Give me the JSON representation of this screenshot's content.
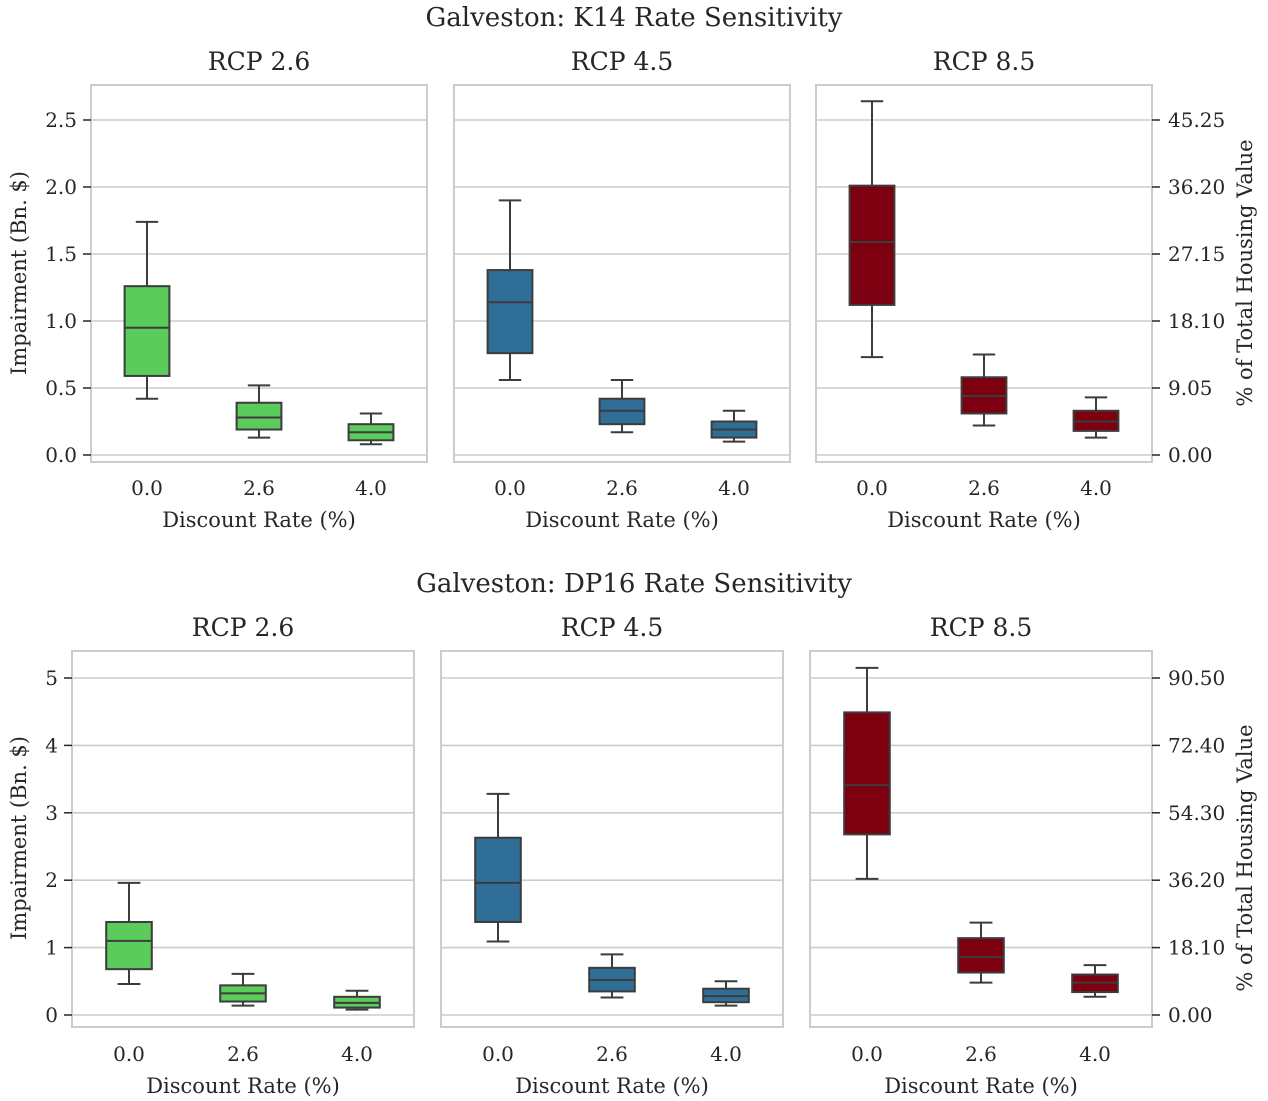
{
  "colors": {
    "RCP 2.6": "#5bcb5c",
    "RCP 4.5": "#2f6f97",
    "RCP 8.5": "#7d0011",
    "grid": "#cccccc",
    "frame": "#cccccc",
    "box_edge": "#3c3c3c"
  },
  "chart_data": [
    {
      "type": "box",
      "title": "Galveston: K14 Rate Sensitivity",
      "xlabel": "Discount Rate (%)",
      "ylabel": "Impairment (Bn. $)",
      "ylabel_right": "% of Total Housing Value",
      "ylim": [
        -0.05,
        2.75
      ],
      "yticks": [
        "0.0",
        "0.5",
        "1.0",
        "1.5",
        "2.0",
        "2.5"
      ],
      "yticks_right": [
        "0.00",
        "9.05",
        "18.10",
        "27.15",
        "36.20",
        "45.25"
      ],
      "categories": [
        "0.0",
        "2.6",
        "4.0"
      ],
      "grid": true,
      "panels": [
        {
          "title": "RCP 2.6",
          "boxes": [
            {
              "whislo": 0.42,
              "q1": 0.59,
              "med": 0.95,
              "q3": 1.26,
              "whishi": 1.74
            },
            {
              "whislo": 0.13,
              "q1": 0.19,
              "med": 0.28,
              "q3": 0.39,
              "whishi": 0.52
            },
            {
              "whislo": 0.08,
              "q1": 0.11,
              "med": 0.17,
              "q3": 0.23,
              "whishi": 0.31
            }
          ]
        },
        {
          "title": "RCP 4.5",
          "boxes": [
            {
              "whislo": 0.56,
              "q1": 0.76,
              "med": 1.14,
              "q3": 1.38,
              "whishi": 1.9
            },
            {
              "whislo": 0.17,
              "q1": 0.23,
              "med": 0.33,
              "q3": 0.42,
              "whishi": 0.56
            },
            {
              "whislo": 0.1,
              "q1": 0.13,
              "med": 0.19,
              "q3": 0.25,
              "whishi": 0.33
            }
          ]
        },
        {
          "title": "RCP 8.5",
          "boxes": [
            {
              "whislo": 0.73,
              "q1": 1.12,
              "med": 1.59,
              "q3": 2.01,
              "whishi": 2.64
            },
            {
              "whislo": 0.22,
              "q1": 0.31,
              "med": 0.44,
              "q3": 0.58,
              "whishi": 0.75
            },
            {
              "whislo": 0.13,
              "q1": 0.18,
              "med": 0.25,
              "q3": 0.33,
              "whishi": 0.43
            }
          ]
        }
      ]
    },
    {
      "type": "box",
      "title": "Galveston: DP16 Rate Sensitivity",
      "xlabel": "Discount Rate (%)",
      "ylabel": "Impairment (Bn. $)",
      "ylabel_right": "% of Total Housing Value",
      "ylim": [
        -0.17,
        5.4
      ],
      "yticks": [
        "0",
        "1",
        "2",
        "3",
        "4",
        "5"
      ],
      "yticks_right": [
        "0.00",
        "18.10",
        "36.20",
        "54.30",
        "72.40",
        "90.50"
      ],
      "categories": [
        "0.0",
        "2.6",
        "4.0"
      ],
      "grid": true,
      "panels": [
        {
          "title": "RCP 2.6",
          "boxes": [
            {
              "whislo": 0.46,
              "q1": 0.68,
              "med": 1.1,
              "q3": 1.38,
              "whishi": 1.96
            },
            {
              "whislo": 0.14,
              "q1": 0.2,
              "med": 0.32,
              "q3": 0.44,
              "whishi": 0.61
            },
            {
              "whislo": 0.08,
              "q1": 0.11,
              "med": 0.18,
              "q3": 0.27,
              "whishi": 0.36
            }
          ]
        },
        {
          "title": "RCP 4.5",
          "boxes": [
            {
              "whislo": 1.09,
              "q1": 1.38,
              "med": 1.96,
              "q3": 2.63,
              "whishi": 3.28
            },
            {
              "whislo": 0.26,
              "q1": 0.35,
              "med": 0.52,
              "q3": 0.7,
              "whishi": 0.9
            },
            {
              "whislo": 0.14,
              "q1": 0.19,
              "med": 0.28,
              "q3": 0.39,
              "whishi": 0.5
            }
          ]
        },
        {
          "title": "RCP 8.5",
          "boxes": [
            {
              "whislo": 2.02,
              "q1": 2.68,
              "med": 3.41,
              "q3": 4.49,
              "whishi": 5.15
            },
            {
              "whislo": 0.48,
              "q1": 0.63,
              "med": 0.86,
              "q3": 1.14,
              "whishi": 1.37
            },
            {
              "whislo": 0.27,
              "q1": 0.34,
              "med": 0.48,
              "q3": 0.6,
              "whishi": 0.74
            }
          ]
        }
      ]
    }
  ]
}
